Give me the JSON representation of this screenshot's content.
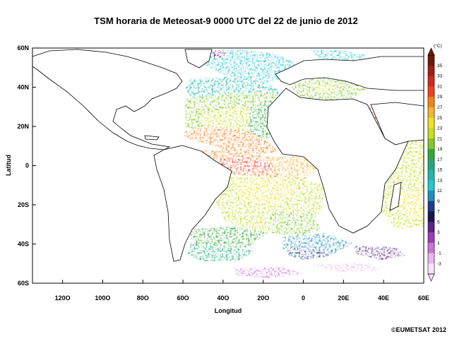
{
  "title": "TSM horaria de Meteosat-9  0000 UTC del 22 de junio de 2012",
  "xlabel": "Longitud",
  "ylabel": "Latitud",
  "x_ticks": [
    "120O",
    "100O",
    "80O",
    "60O",
    "40O",
    "20O",
    "0",
    "20E",
    "40E",
    "60E"
  ],
  "x_tick_values": [
    -120,
    -100,
    -80,
    -60,
    -40,
    -20,
    0,
    20,
    40,
    60
  ],
  "y_ticks": [
    "60N",
    "40N",
    "20N",
    "0",
    "20S",
    "40S",
    "60S"
  ],
  "y_tick_values": [
    60,
    40,
    20,
    0,
    -20,
    -40,
    -60
  ],
  "lon_range": [
    -135,
    60
  ],
  "lat_range": [
    -60,
    60
  ],
  "colorbar": {
    "unit": "(°C)",
    "labels": [
      "35",
      "33",
      "31",
      "29",
      "27",
      "25",
      "23",
      "21",
      "19",
      "17",
      "15",
      "13",
      "11",
      "9",
      "7",
      "5",
      "3",
      "1",
      "-1",
      "-3"
    ],
    "colors": [
      "#6e1a08",
      "#a01e10",
      "#d22a18",
      "#f04020",
      "#f8801c",
      "#f4b42c",
      "#f0e020",
      "#c8dc20",
      "#84c828",
      "#30a838",
      "#1eaa78",
      "#22b8aa",
      "#24c8d0",
      "#1e90c0",
      "#1e3c8c",
      "#1a1450",
      "#5a2488",
      "#9c3cb8",
      "#d070d8",
      "#ecb4ec",
      "#f8e4f8"
    ]
  },
  "copyright": "©EUMETSAT 2012"
}
